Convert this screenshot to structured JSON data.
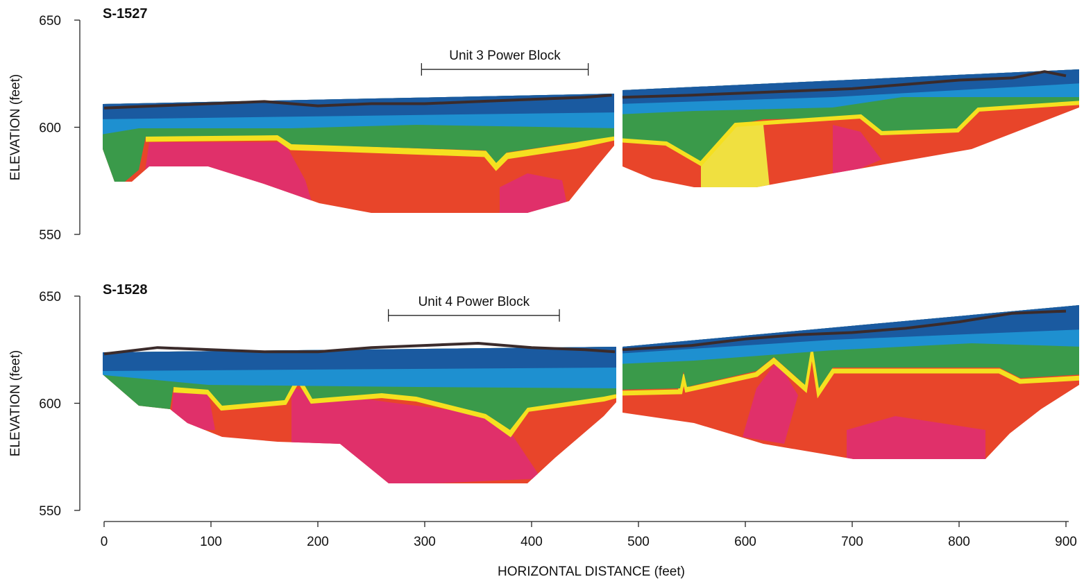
{
  "chart_data": [
    {
      "type": "section",
      "title": "S-1527",
      "ylabel": "ELEVATION (feet)",
      "xlim": [
        0,
        900
      ],
      "ylim": [
        550,
        650
      ],
      "yticks": [
        550,
        600,
        650
      ],
      "annotation": {
        "text": "Unit 3 Power Block",
        "xlim": [
          297,
          453
        ],
        "y": 627
      },
      "surface": {
        "color": "#3b2b2b",
        "x": [
          0,
          50,
          100,
          150,
          200,
          250,
          300,
          350,
          400,
          450,
          475,
          480,
          485,
          550,
          600,
          650,
          700,
          750,
          800,
          850,
          880,
          900
        ],
        "values": [
          609,
          610,
          611,
          612,
          610,
          611,
          611,
          612,
          613,
          614,
          615,
          null,
          614,
          615,
          616,
          617,
          618,
          620,
          622,
          623,
          626,
          624
        ]
      }
    },
    {
      "type": "section",
      "title": "S-1528",
      "ylabel": "ELEVATION (feet)",
      "xlabel": "HORIZONTAL DISTANCE (feet)",
      "xlim": [
        0,
        900
      ],
      "xticks": [
        0,
        100,
        200,
        300,
        400,
        500,
        600,
        700,
        800,
        900
      ],
      "ylim": [
        550,
        650
      ],
      "yticks": [
        550,
        600,
        650
      ],
      "annotation": {
        "text": "Unit 4 Power Block",
        "xlim": [
          266,
          426
        ],
        "y": 641
      },
      "surface": {
        "color": "#3b2b2b",
        "x": [
          0,
          50,
          100,
          150,
          200,
          250,
          300,
          350,
          400,
          450,
          478,
          480,
          485,
          550,
          600,
          650,
          700,
          750,
          800,
          850,
          900
        ],
        "values": [
          623,
          626,
          625,
          624,
          624,
          626,
          627,
          628,
          626,
          625,
          624,
          null,
          625,
          627,
          630,
          632,
          633,
          635,
          638,
          642,
          643
        ]
      }
    }
  ]
}
